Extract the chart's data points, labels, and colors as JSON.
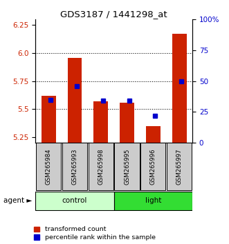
{
  "title": "GDS3187 / 1441298_at",
  "samples": [
    "GSM265984",
    "GSM265993",
    "GSM265998",
    "GSM265995",
    "GSM265996",
    "GSM265997"
  ],
  "transformed_counts": [
    5.62,
    5.96,
    5.57,
    5.56,
    5.35,
    6.17
  ],
  "percentile_ranks": [
    35,
    46,
    34,
    34,
    22,
    50
  ],
  "groups": [
    "control",
    "control",
    "control",
    "light",
    "light",
    "light"
  ],
  "ylim_left": [
    5.2,
    6.3
  ],
  "ylim_right": [
    0,
    100
  ],
  "yticks_left": [
    5.25,
    5.5,
    5.75,
    6.0,
    6.25
  ],
  "yticks_right": [
    0,
    25,
    50,
    75,
    100
  ],
  "ytick_labels_right": [
    "0",
    "25",
    "50",
    "75",
    "100%"
  ],
  "bar_color": "#cc2200",
  "dot_color": "#0000cc",
  "control_color": "#ccffcc",
  "light_color": "#33dd33",
  "bar_bottom": 5.2,
  "bar_width": 0.55,
  "gridline_y": [
    5.5,
    5.75,
    6.0
  ],
  "legend_labels": [
    "transformed count",
    "percentile rank within the sample"
  ],
  "agent_text": "agent",
  "control_text": "control",
  "light_text": "light"
}
